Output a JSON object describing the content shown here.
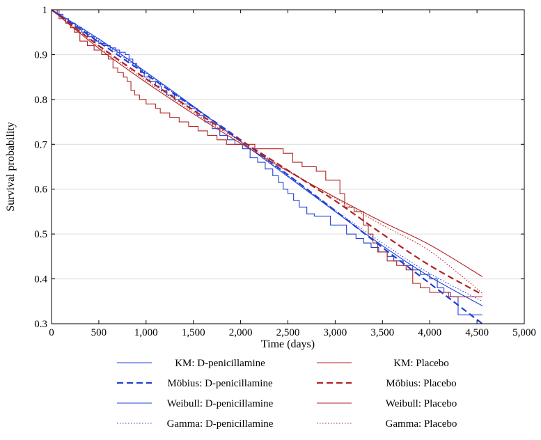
{
  "chart_data": {
    "type": "line",
    "xlabel": "Time (days)",
    "ylabel": "Survival probability",
    "xlim": [
      0,
      5000
    ],
    "ylim": [
      0.3,
      1.0
    ],
    "xticks": [
      0,
      500,
      1000,
      1500,
      2000,
      2500,
      3000,
      3500,
      4000,
      4500,
      5000
    ],
    "xtick_labels": [
      "0",
      "500",
      "1,000",
      "1,500",
      "2,000",
      "2,500",
      "3,000",
      "3,500",
      "4,000",
      "4,500",
      "5,000"
    ],
    "yticks": [
      0.3,
      0.4,
      0.5,
      0.6,
      0.7,
      0.8,
      0.9,
      1.0
    ],
    "ytick_labels": [
      "0.3",
      "0.4",
      "0.5",
      "0.6",
      "0.7",
      "0.8",
      "0.9",
      "1"
    ],
    "grid": "horizontal",
    "legend_position": "below",
    "colors": {
      "blue": "#1f3fd6",
      "red": "#b22222"
    },
    "series": [
      {
        "name": "KM: D-penicillamine",
        "style": "step",
        "color": "#1f3fd6",
        "x": [
          0,
          60,
          120,
          180,
          250,
          320,
          380,
          450,
          500,
          560,
          620,
          680,
          720,
          780,
          820,
          860,
          900,
          940,
          980,
          1040,
          1100,
          1160,
          1220,
          1300,
          1380,
          1460,
          1540,
          1620,
          1700,
          1780,
          1860,
          1940,
          2020,
          2100,
          2180,
          2260,
          2340,
          2400,
          2450,
          2500,
          2560,
          2620,
          2700,
          2780,
          2860,
          2950,
          3040,
          3120,
          3220,
          3300,
          3380,
          3460,
          3550,
          3620,
          3720,
          3820,
          3900,
          4000,
          4080,
          4150,
          4220,
          4300,
          4400,
          4556
        ],
        "y": [
          1.0,
          0.99,
          0.98,
          0.97,
          0.96,
          0.95,
          0.94,
          0.93,
          0.925,
          0.92,
          0.915,
          0.91,
          0.905,
          0.9,
          0.89,
          0.88,
          0.87,
          0.86,
          0.85,
          0.84,
          0.83,
          0.82,
          0.81,
          0.8,
          0.79,
          0.78,
          0.765,
          0.75,
          0.735,
          0.72,
          0.71,
          0.7,
          0.69,
          0.67,
          0.66,
          0.645,
          0.63,
          0.615,
          0.6,
          0.59,
          0.575,
          0.56,
          0.545,
          0.54,
          0.54,
          0.52,
          0.52,
          0.5,
          0.49,
          0.48,
          0.47,
          0.46,
          0.45,
          0.44,
          0.43,
          0.42,
          0.41,
          0.4,
          0.38,
          0.37,
          0.36,
          0.32,
          0.32,
          0.32
        ]
      },
      {
        "name": "KM: Placebo",
        "style": "step",
        "color": "#b22222",
        "x": [
          0,
          80,
          150,
          200,
          240,
          300,
          380,
          450,
          530,
          600,
          650,
          700,
          760,
          800,
          840,
          880,
          930,
          1000,
          1100,
          1150,
          1250,
          1350,
          1450,
          1550,
          1650,
          1750,
          1850,
          1950,
          2050,
          2150,
          2250,
          2350,
          2450,
          2550,
          2650,
          2800,
          2900,
          3050,
          3100,
          3200,
          3300,
          3350,
          3400,
          3450,
          3550,
          3650,
          3750,
          3820,
          3900,
          4000,
          4100,
          4200,
          4300,
          4556
        ],
        "y": [
          1.0,
          0.98,
          0.97,
          0.96,
          0.95,
          0.93,
          0.92,
          0.91,
          0.9,
          0.89,
          0.87,
          0.86,
          0.85,
          0.84,
          0.82,
          0.81,
          0.8,
          0.79,
          0.78,
          0.77,
          0.76,
          0.75,
          0.74,
          0.73,
          0.72,
          0.71,
          0.7,
          0.7,
          0.7,
          0.69,
          0.69,
          0.69,
          0.68,
          0.66,
          0.65,
          0.64,
          0.62,
          0.59,
          0.56,
          0.55,
          0.52,
          0.5,
          0.48,
          0.46,
          0.44,
          0.43,
          0.42,
          0.39,
          0.38,
          0.37,
          0.37,
          0.36,
          0.36,
          0.36
        ]
      },
      {
        "name": "Möbius: D-penicillamine",
        "style": "dashed",
        "color": "#1f3fd6",
        "x": [
          0,
          500,
          1000,
          1500,
          2000,
          2500,
          3000,
          3500,
          4000,
          4556
        ],
        "y": [
          1.0,
          0.928,
          0.856,
          0.783,
          0.71,
          0.632,
          0.552,
          0.47,
          0.39,
          0.3
        ]
      },
      {
        "name": "Möbius: Placebo",
        "style": "dashed",
        "color": "#b22222",
        "x": [
          0,
          500,
          1000,
          1500,
          2000,
          2500,
          3000,
          3500,
          4000,
          4556
        ],
        "y": [
          1.0,
          0.92,
          0.846,
          0.776,
          0.709,
          0.642,
          0.574,
          0.5,
          0.43,
          0.365
        ]
      },
      {
        "name": "Weibull: D-penicillamine",
        "style": "solid",
        "color": "#1f3fd6",
        "x": [
          0,
          500,
          1000,
          1500,
          2000,
          2500,
          3000,
          3500,
          4000,
          4556
        ],
        "y": [
          1.0,
          0.935,
          0.861,
          0.785,
          0.706,
          0.628,
          0.55,
          0.474,
          0.405,
          0.34
        ]
      },
      {
        "name": "Weibull: Placebo",
        "style": "solid",
        "color": "#b22222",
        "x": [
          0,
          500,
          1000,
          1500,
          2000,
          2500,
          3000,
          3500,
          4000,
          4556
        ],
        "y": [
          1.0,
          0.914,
          0.838,
          0.768,
          0.702,
          0.64,
          0.582,
          0.527,
          0.476,
          0.405
        ]
      },
      {
        "name": "Gamma: D-penicillamine",
        "style": "dotted",
        "color": "#1f3fd6",
        "x": [
          0,
          500,
          1000,
          1500,
          2000,
          2500,
          3000,
          3500,
          4000,
          4556
        ],
        "y": [
          1.0,
          0.932,
          0.859,
          0.783,
          0.707,
          0.63,
          0.553,
          0.48,
          0.412,
          0.35
        ]
      },
      {
        "name": "Gamma: Placebo",
        "style": "dotted",
        "color": "#b22222",
        "x": [
          0,
          500,
          1000,
          1500,
          2000,
          2500,
          3000,
          3500,
          4000,
          4556
        ],
        "y": [
          1.0,
          0.918,
          0.842,
          0.772,
          0.706,
          0.642,
          0.58,
          0.52,
          0.462,
          0.368
        ]
      }
    ]
  }
}
